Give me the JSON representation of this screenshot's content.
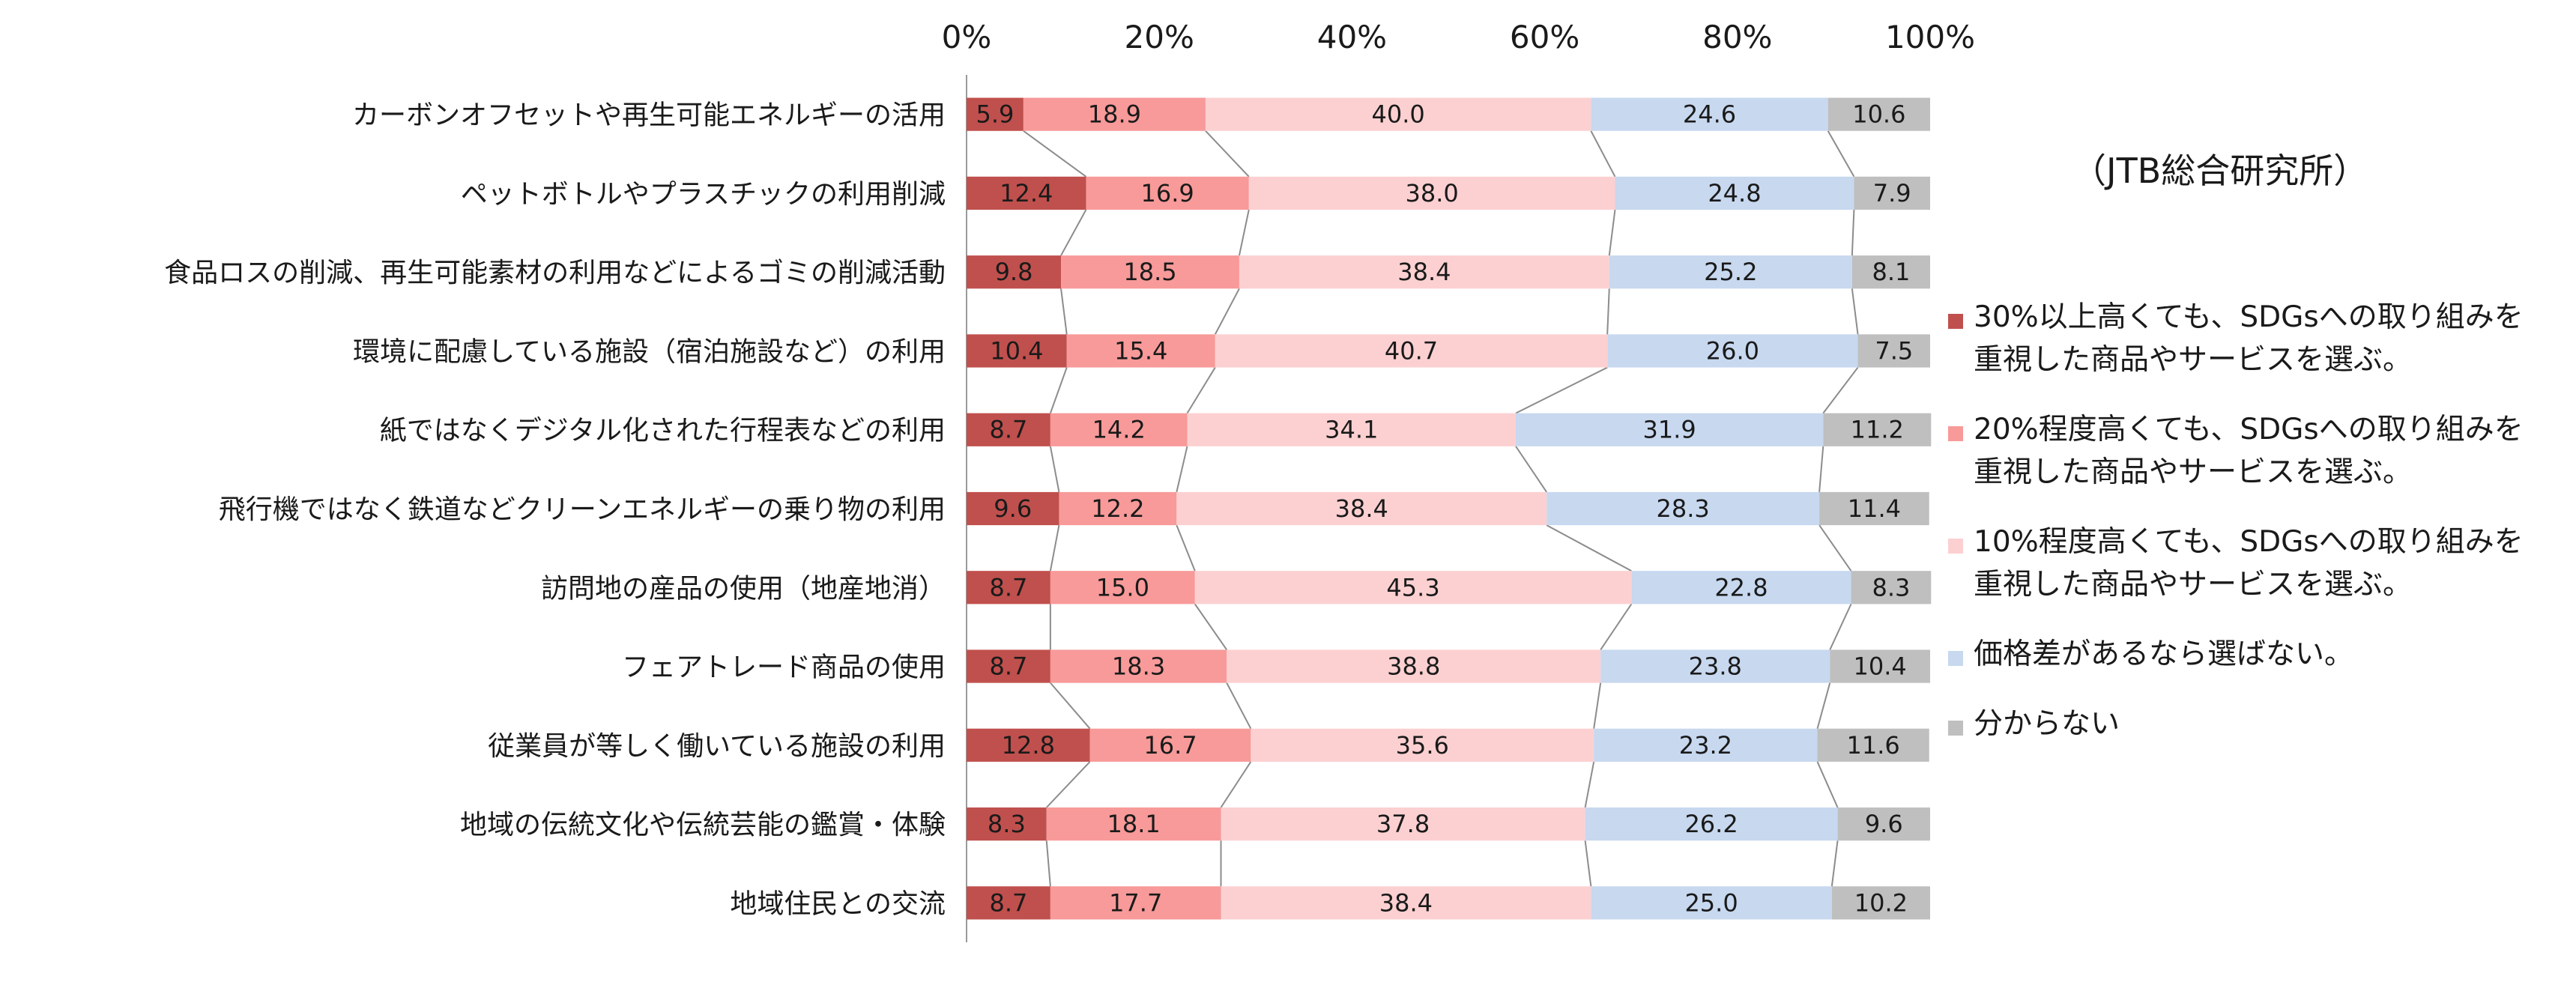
{
  "source_note": "（JTB総合研究所）",
  "colors": [
    "#c0504d",
    "#f79a99",
    "#fcd0d1",
    "#c7d8ef",
    "#bfbfbf"
  ],
  "chart_data": {
    "type": "bar",
    "orientation": "horizontal",
    "stacked": "percent",
    "xlim": [
      0,
      100
    ],
    "x_ticks": [
      "0%",
      "20%",
      "40%",
      "60%",
      "80%",
      "100%"
    ],
    "grid": false,
    "legend_position": "right",
    "series_connectors": true,
    "categories": [
      "カーボンオフセットや再生可能エネルギーの活用",
      "ペットボトルやプラスチックの利用削減",
      "食品ロスの削減、再生可能素材の利用などによるゴミの削減活動",
      "環境に配慮している施設（宿泊施設など）の利用",
      "紙ではなくデジタル化された行程表などの利用",
      "飛行機ではなく鉄道などクリーンエネルギーの乗り物の利用",
      "訪問地の産品の使用（地産地消）",
      "フェアトレード商品の使用",
      "従業員が等しく働いている施設の利用",
      "地域の伝統文化や伝統芸能の鑑賞・体験",
      "地域住民との交流"
    ],
    "series": [
      {
        "name": "30%以上高くても、SDGsへの取り組みを重視した商品やサービスを選ぶ。",
        "legend_lines": [
          "30%以上高くても、SDGsへの取り組みを",
          "重視した商品やサービスを選ぶ。"
        ],
        "values": [
          5.9,
          12.4,
          9.8,
          10.4,
          8.7,
          9.6,
          8.7,
          8.7,
          12.8,
          8.3,
          8.7
        ]
      },
      {
        "name": "20%程度高くても、SDGsへの取り組みを重視した商品やサービスを選ぶ。",
        "legend_lines": [
          "20%程度高くても、SDGsへの取り組みを",
          "重視した商品やサービスを選ぶ。"
        ],
        "values": [
          18.9,
          16.9,
          18.5,
          15.4,
          14.2,
          12.2,
          15.0,
          18.3,
          16.7,
          18.1,
          17.7
        ]
      },
      {
        "name": "10%程度高くても、SDGsへの取り組みを重視した商品やサービスを選ぶ。",
        "legend_lines": [
          "10%程度高くても、SDGsへの取り組みを",
          "重視した商品やサービスを選ぶ。"
        ],
        "values": [
          40.0,
          38.0,
          38.4,
          40.7,
          34.1,
          38.4,
          45.3,
          38.8,
          35.6,
          37.8,
          38.4
        ]
      },
      {
        "name": "価格差があるなら選ばない。",
        "legend_lines": [
          "価格差があるなら選ばない。"
        ],
        "values": [
          24.6,
          24.8,
          25.2,
          26.0,
          31.9,
          28.3,
          22.8,
          23.8,
          23.2,
          26.2,
          25.0
        ]
      },
      {
        "name": "分からない",
        "legend_lines": [
          "分からない"
        ],
        "values": [
          10.6,
          7.9,
          8.1,
          7.5,
          11.2,
          11.4,
          8.3,
          10.4,
          11.6,
          9.6,
          10.2
        ]
      }
    ]
  }
}
